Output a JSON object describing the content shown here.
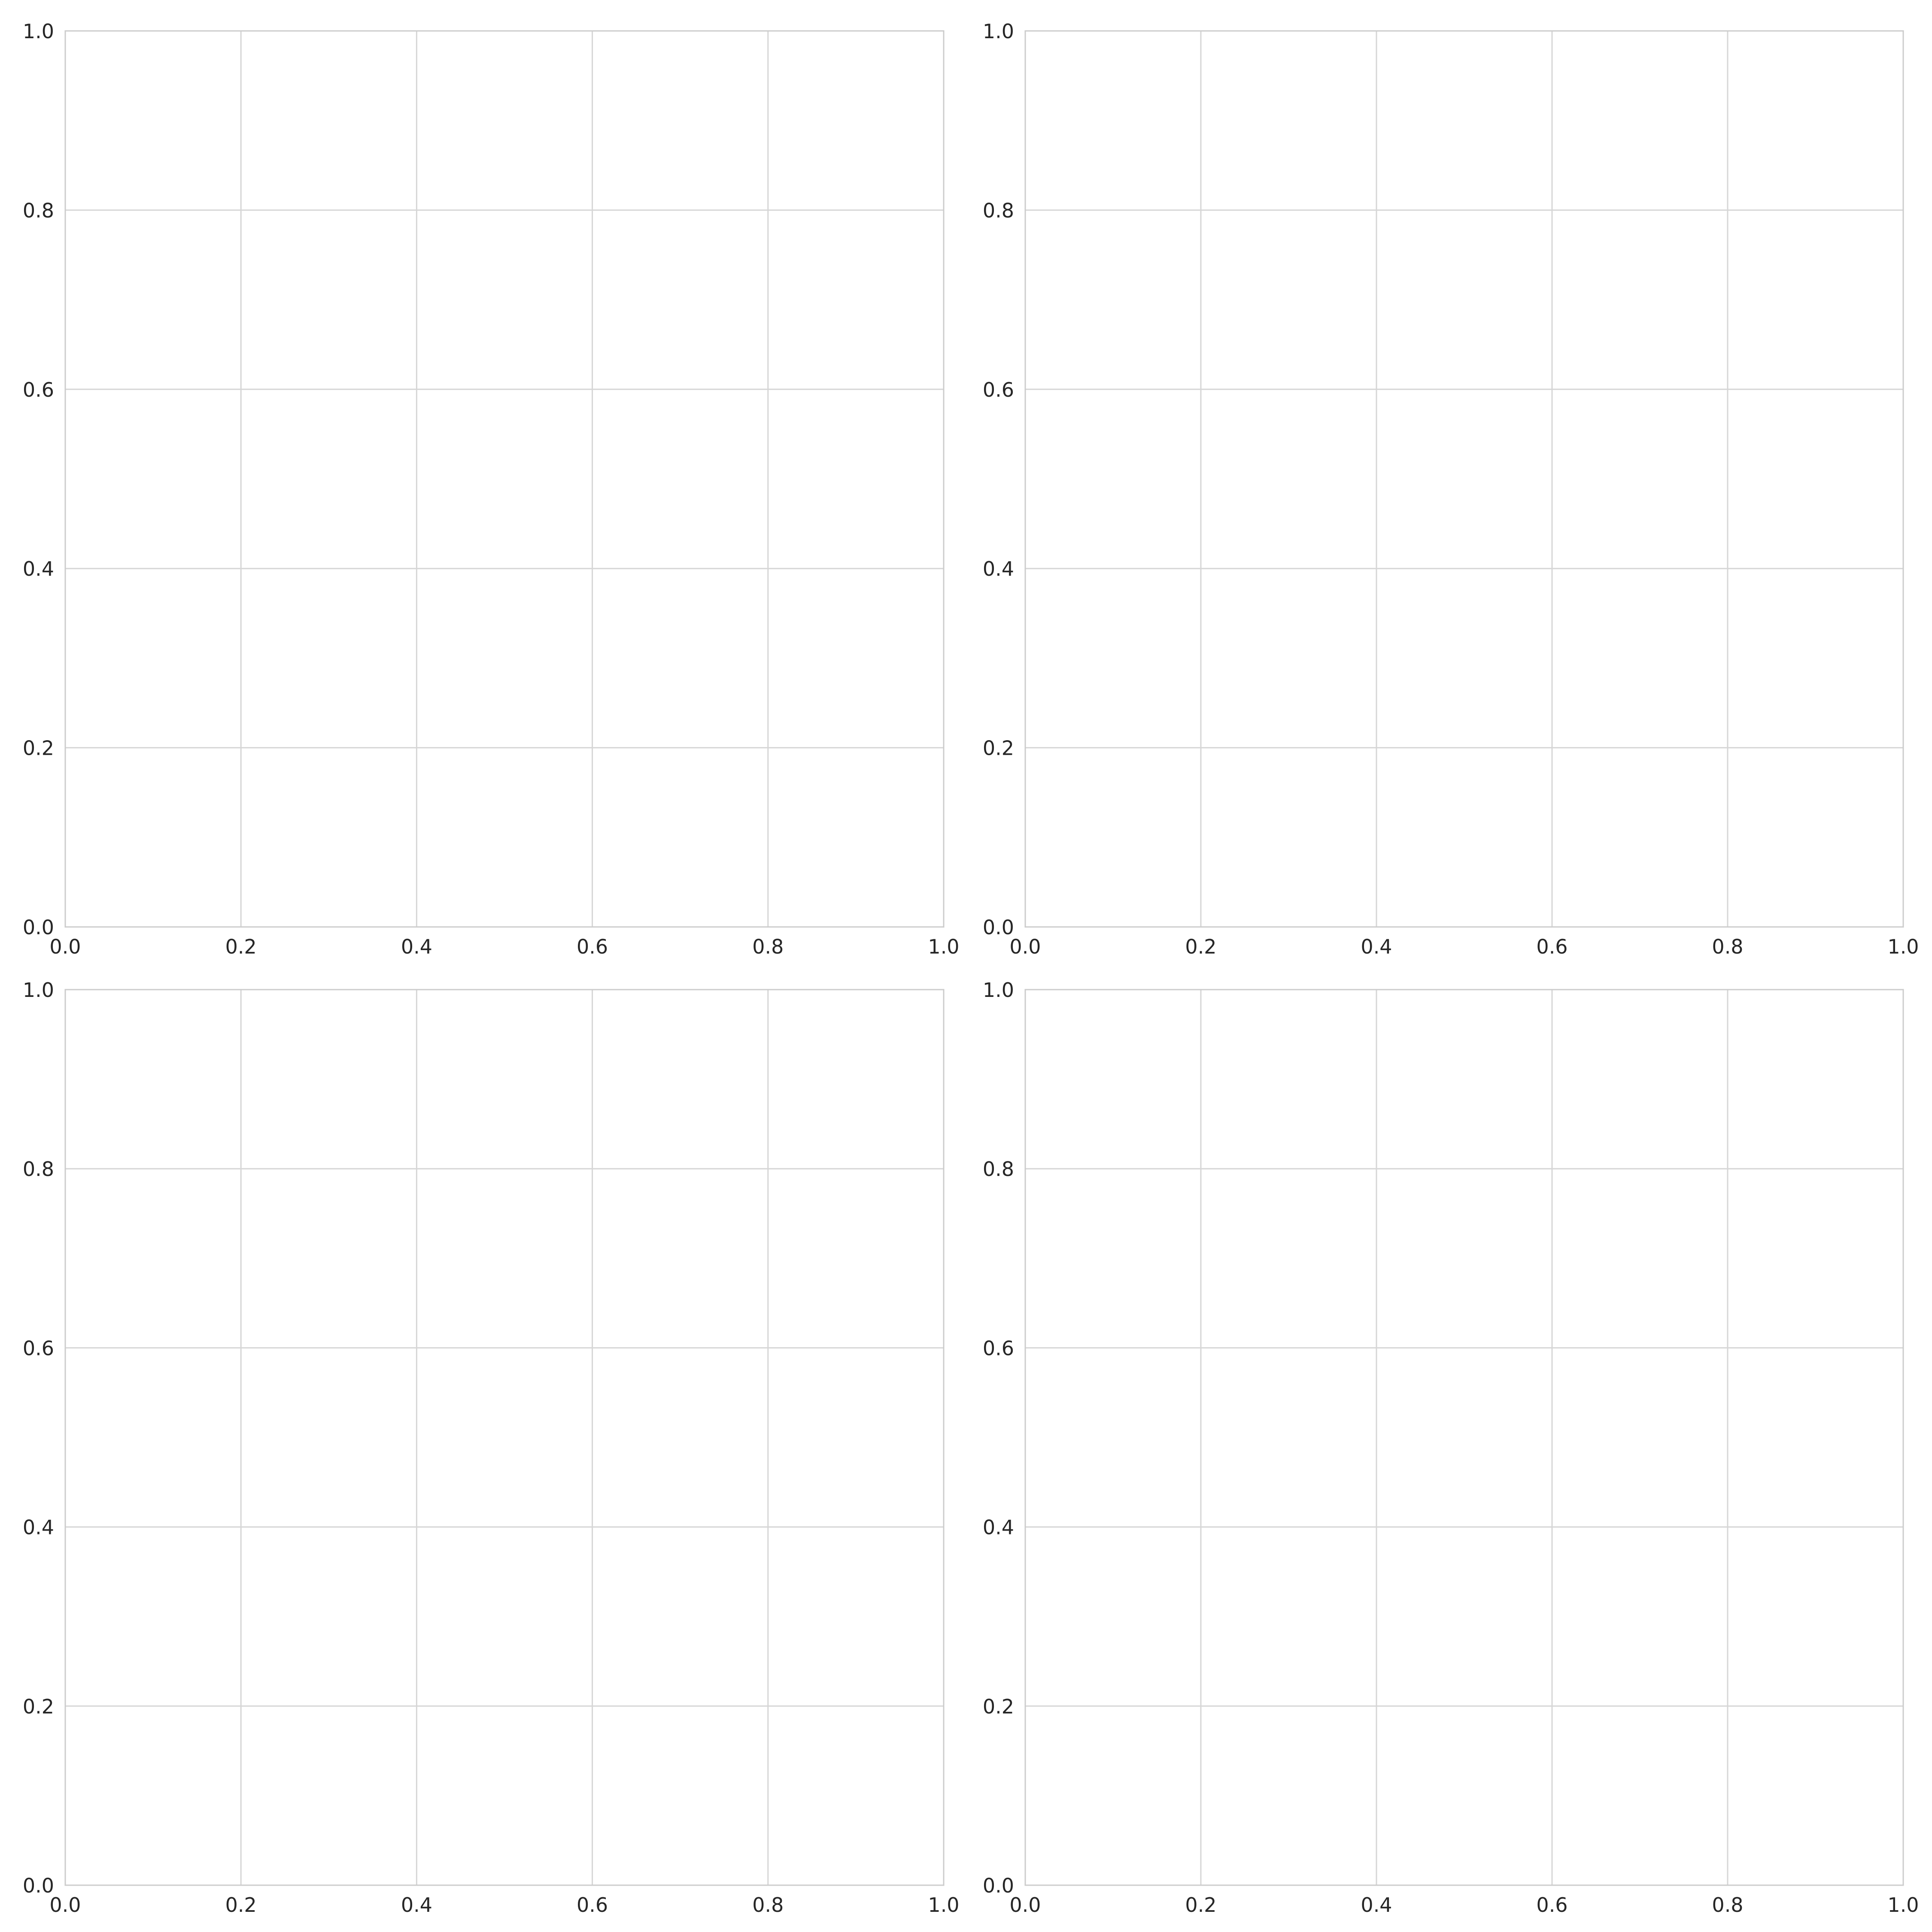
{
  "chart_data": [
    {
      "type": "scatter",
      "position": "top-left",
      "title": "",
      "xlabel": "",
      "ylabel": "",
      "xlim": [
        0,
        1
      ],
      "ylim": [
        0,
        1
      ],
      "xticks": [
        "0.0",
        "0.2",
        "0.4",
        "0.6",
        "0.8",
        "1.0"
      ],
      "yticks": [
        "0.0",
        "0.2",
        "0.4",
        "0.6",
        "0.8",
        "1.0"
      ],
      "grid": true,
      "series": []
    },
    {
      "type": "scatter",
      "position": "top-right",
      "title": "",
      "xlabel": "",
      "ylabel": "",
      "xlim": [
        0,
        1
      ],
      "ylim": [
        0,
        1
      ],
      "xticks": [
        "0.0",
        "0.2",
        "0.4",
        "0.6",
        "0.8",
        "1.0"
      ],
      "yticks": [
        "0.0",
        "0.2",
        "0.4",
        "0.6",
        "0.8",
        "1.0"
      ],
      "grid": true,
      "series": []
    },
    {
      "type": "scatter",
      "position": "bottom-left",
      "title": "",
      "xlabel": "",
      "ylabel": "",
      "xlim": [
        0,
        1
      ],
      "ylim": [
        0,
        1
      ],
      "xticks": [
        "0.0",
        "0.2",
        "0.4",
        "0.6",
        "0.8",
        "1.0"
      ],
      "yticks": [
        "0.0",
        "0.2",
        "0.4",
        "0.6",
        "0.8",
        "1.0"
      ],
      "grid": true,
      "series": []
    },
    {
      "type": "scatter",
      "position": "bottom-right",
      "title": "",
      "xlabel": "",
      "ylabel": "",
      "xlim": [
        0,
        1
      ],
      "ylim": [
        0,
        1
      ],
      "xticks": [
        "0.0",
        "0.2",
        "0.4",
        "0.6",
        "0.8",
        "1.0"
      ],
      "yticks": [
        "0.0",
        "0.2",
        "0.4",
        "0.6",
        "0.8",
        "1.0"
      ],
      "grid": true,
      "series": []
    }
  ],
  "colors": {
    "background": "#ffffff",
    "grid": "#d6d6d6",
    "frame": "#cccccc",
    "tick_text": "#262626"
  }
}
